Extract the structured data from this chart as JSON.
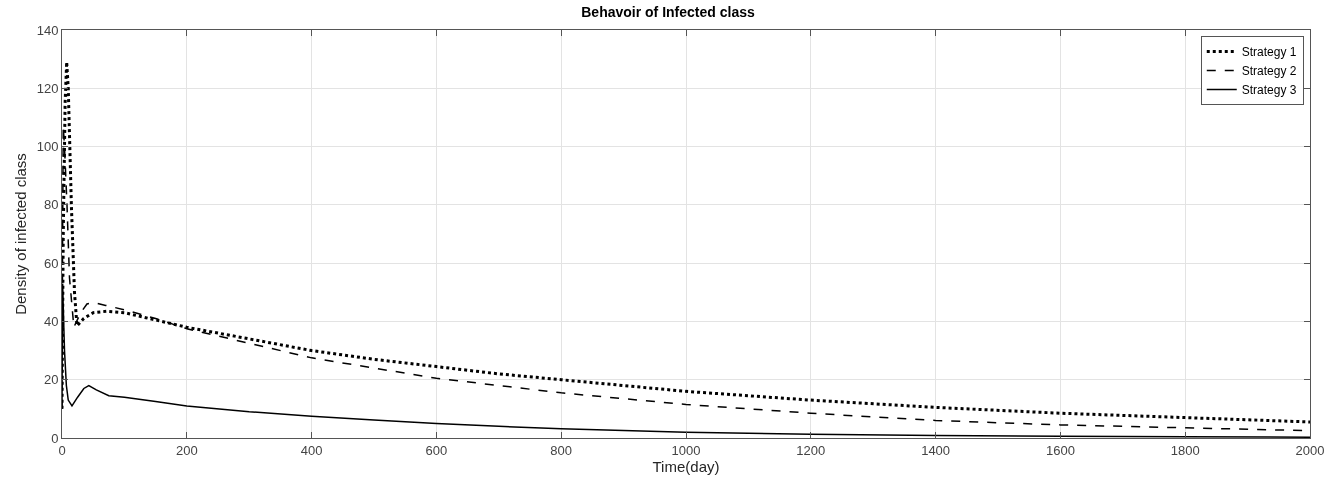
{
  "chart_data": {
    "type": "line",
    "title": "Behavoir of Infected class",
    "xlabel": "Time(day)",
    "ylabel": "Density of infected class",
    "xlim": [
      0,
      2000
    ],
    "xticks": [
      0,
      200,
      400,
      600,
      800,
      1000,
      1200,
      1400,
      1600,
      1800,
      2000
    ],
    "ylim": [
      0,
      140
    ],
    "yticks": [
      0,
      20,
      40,
      60,
      80,
      100,
      120,
      140
    ],
    "grid": true,
    "legend": "top right",
    "series": [
      {
        "name": "Strategy 1",
        "color": "#000000",
        "line_style": "dotted",
        "x": [
          0,
          2,
          5,
          7.5,
          10,
          15,
          20,
          24,
          35,
          50,
          72,
          100,
          150,
          200,
          300,
          400,
          500,
          600,
          700,
          800,
          900,
          1000,
          1200,
          1400,
          1600,
          1800,
          2000
        ],
        "values": [
          10,
          70,
          115,
          129,
          120,
          80,
          50,
          38.5,
          41,
          43,
          43.5,
          43,
          40.5,
          38,
          34,
          30,
          27,
          24.5,
          22,
          20,
          18,
          16,
          13,
          10.5,
          8.5,
          7,
          5.5
        ]
      },
      {
        "name": "Strategy 2",
        "color": "#000000",
        "line_style": "dashed",
        "x": [
          0,
          1,
          2,
          4,
          8,
          12,
          19,
          30,
          40,
          51,
          70,
          100,
          150,
          200,
          300,
          400,
          500,
          600,
          700,
          800,
          900,
          1000,
          1200,
          1400,
          1600,
          1800,
          2000
        ],
        "values": [
          10,
          70,
          107,
          100,
          80,
          55,
          38,
          43,
          46,
          46.5,
          45.5,
          44,
          41,
          37.5,
          32.5,
          27.5,
          24,
          20.5,
          18,
          15.5,
          13.5,
          11.5,
          8.5,
          6,
          4.5,
          3.5,
          2.5
        ]
      },
      {
        "name": "Strategy 3",
        "color": "#000000",
        "line_style": "solid",
        "x": [
          0,
          0.5,
          1,
          2,
          4,
          7,
          10,
          16,
          25,
          35,
          43,
          55,
          75,
          100,
          150,
          200,
          300,
          400,
          500,
          600,
          700,
          800,
          1000,
          1200,
          1400,
          1600,
          1800,
          2000
        ],
        "values": [
          10,
          40,
          53,
          45,
          30,
          18,
          13,
          11,
          14,
          17,
          18,
          16.5,
          14.5,
          14,
          12.5,
          11,
          9,
          7.5,
          6.2,
          5,
          4,
          3.2,
          2,
          1.3,
          0.9,
          0.6,
          0.4,
          0.3
        ]
      }
    ]
  }
}
